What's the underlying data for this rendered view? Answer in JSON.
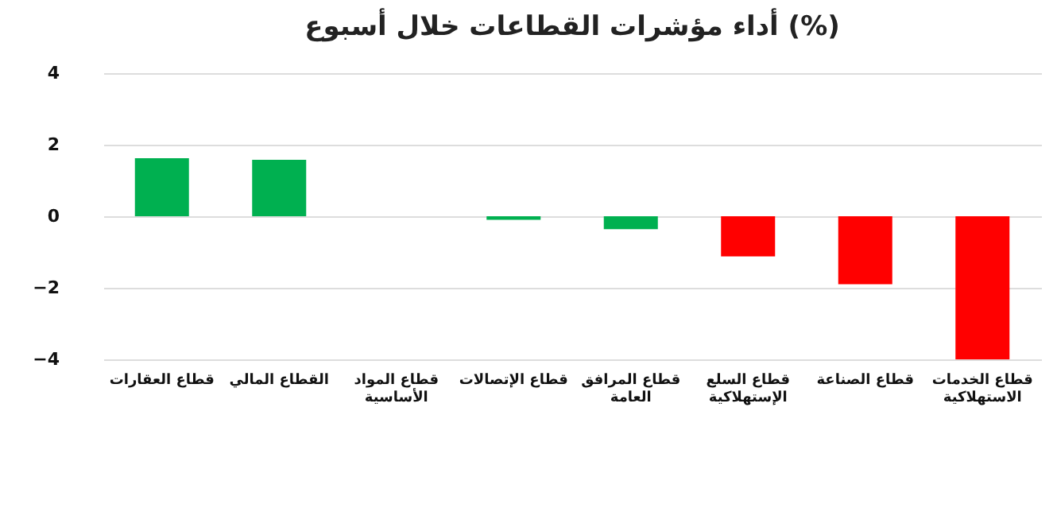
{
  "chart_data": {
    "type": "bar",
    "title": "أداء مؤشرات القطاعات خلال أسبوع (%)",
    "categories": [
      "قطاع العقارات",
      "القطاع المالي",
      "قطاع المواد الأساسية",
      "قطاع الإتصالات",
      "قطاع المرافق العامة",
      "قطاع السلع الإستهلاكية",
      "قطاع الصناعة",
      "قطاع الخدمات الاستهلاكية"
    ],
    "values": [
      1.62,
      1.58,
      0,
      -0.1,
      -0.36,
      -1.12,
      -1.9,
      -4.0
    ],
    "colors": [
      "#00b050",
      "#00b050",
      "#00b050",
      "#00b050",
      "#00b050",
      "#ff0000",
      "#ff0000",
      "#ff0000"
    ],
    "ylim": [
      -4,
      4
    ],
    "yticks": [
      -4,
      -2,
      0,
      2,
      4
    ],
    "grid": true
  }
}
